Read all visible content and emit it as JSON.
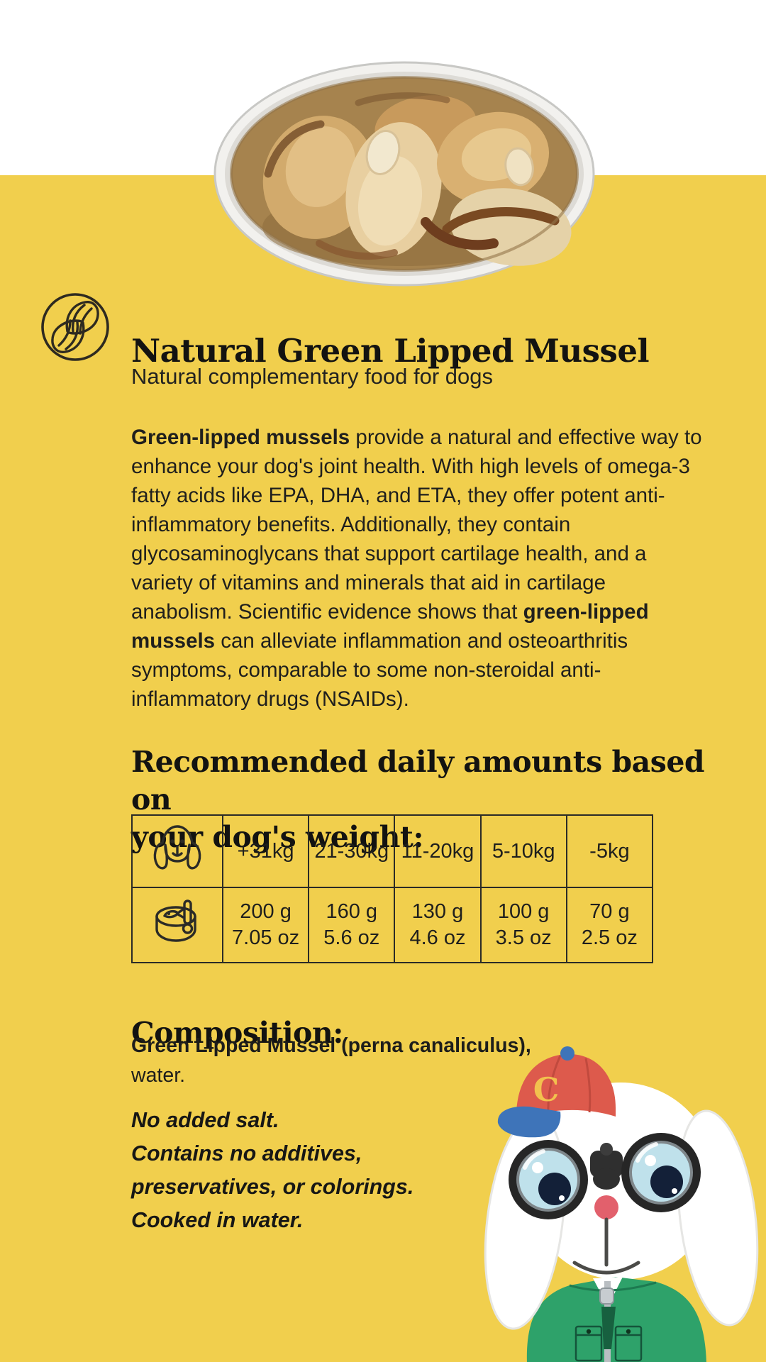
{
  "colors": {
    "background_yellow": "#F1CF4D",
    "background_white": "#FFFFFF",
    "text": "#1F1F1D",
    "cap_red": "#DD5A4C",
    "cap_blue": "#3E74B9",
    "vest_green": "#2EA26A",
    "nose_pink": "#E2606C",
    "lens_glass_blue": "#BFE1EB",
    "pupil_navy": "#132038"
  },
  "icons": {
    "badge": "mussel-shells-icon",
    "table_row1": "dog-head-icon",
    "table_row2": "tin-can-icon",
    "mascot": "dog-mascot-with-binoculars"
  },
  "header": {
    "title": "Natural Green Lipped Mussel",
    "subtitle": "Natural complementary food for dogs"
  },
  "intro": {
    "runs": [
      {
        "text": "Green-lipped mussels",
        "bold": true
      },
      {
        "text": " provide a natural and effective way to enhance your dog's joint health. With high levels of omega-3 fatty acids like EPA, DHA, and ETA, they offer potent anti-inflammatory benefits. Additionally, they contain glycosaminoglycans that support cartilage health, and a variety of vitamins and minerals that aid in cartilage anabolism. Scientific evidence shows that ",
        "bold": false
      },
      {
        "text": "green-lipped mussels",
        "bold": true
      },
      {
        "text": " can alleviate inflammation and osteoarthritis symptoms, comparable to some non-steroidal anti-inflammatory drugs (NSAIDs).",
        "bold": false
      }
    ]
  },
  "recommended": {
    "heading_lines": [
      "Recommended daily amounts based on",
      "your dog's weight:"
    ],
    "table": {
      "weight_headers": [
        "+31kg",
        "21-30kg",
        "11-20kg",
        "5-10kg",
        "-5kg"
      ],
      "amounts": [
        {
          "grams": "200 g",
          "ounces": "7.05 oz"
        },
        {
          "grams": "160 g",
          "ounces": "5.6 oz"
        },
        {
          "grams": "130 g",
          "ounces": "4.6 oz"
        },
        {
          "grams": "100 g",
          "ounces": "3.5 oz"
        },
        {
          "grams": "70 g",
          "ounces": "2.5 oz"
        }
      ]
    }
  },
  "composition": {
    "heading": "Composition:",
    "ingredient_bold": "Green Lipped Mussel (perna canaliculus),",
    "ingredient_rest": "water.",
    "notes": [
      "No added salt.",
      "Contains no additives,",
      "preservatives, or colorings.",
      "Cooked in water."
    ]
  },
  "mascot": {
    "cap_letter": "C"
  }
}
